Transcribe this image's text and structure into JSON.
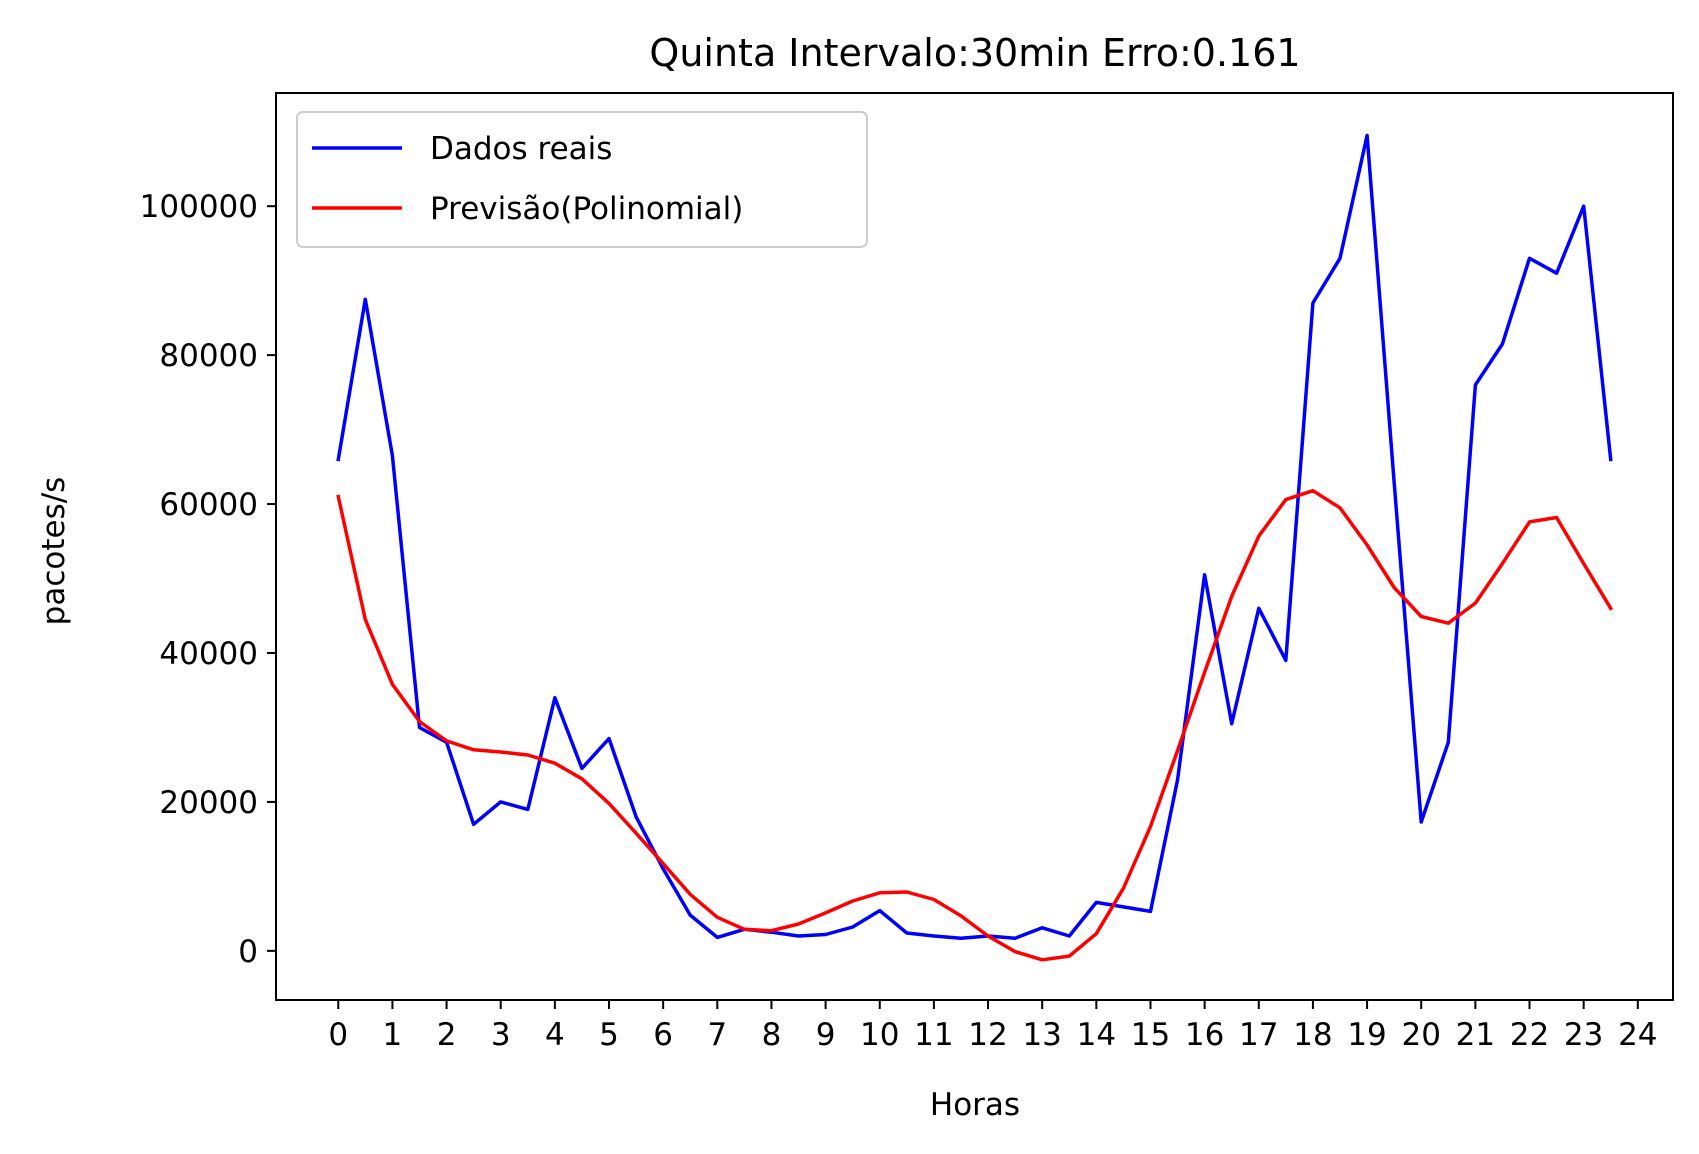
{
  "chart_data": {
    "type": "line",
    "title": "Quinta Intervalo:30min Erro:0.161",
    "xlabel": "Horas",
    "ylabel": "pacotes/s",
    "xlim": [
      -1.15,
      24.65
    ],
    "ylim": [
      -6600,
      115200
    ],
    "x_ticks": [
      0,
      1,
      2,
      3,
      4,
      5,
      6,
      7,
      8,
      9,
      10,
      11,
      12,
      13,
      14,
      15,
      16,
      17,
      18,
      19,
      20,
      21,
      22,
      23,
      24
    ],
    "x_tick_labels": [
      "0",
      "1",
      "2",
      "3",
      "4",
      "5",
      "6",
      "7",
      "8",
      "9",
      "10",
      "11",
      "12",
      "13",
      "14",
      "15",
      "16",
      "17",
      "18",
      "19",
      "20",
      "21",
      "22",
      "23",
      "24"
    ],
    "y_ticks": [
      0,
      20000,
      40000,
      60000,
      80000,
      100000
    ],
    "y_tick_labels": [
      "0",
      "20000",
      "40000",
      "60000",
      "80000",
      "100000"
    ],
    "grid": false,
    "legend_position": "upper-left",
    "x": [
      0,
      0.5,
      1,
      1.5,
      2,
      2.5,
      3,
      3.5,
      4,
      4.5,
      5,
      5.5,
      6,
      6.5,
      7,
      7.5,
      8,
      8.5,
      9,
      9.5,
      10,
      10.5,
      11,
      11.5,
      12,
      12.5,
      13,
      13.5,
      14,
      14.5,
      15,
      15.5,
      16,
      16.5,
      17,
      17.5,
      18,
      18.5,
      19,
      19.5,
      20,
      20.5,
      21,
      21.5,
      22,
      22.5,
      23,
      23.5
    ],
    "series": [
      {
        "name": "Dados reais",
        "color": "#0000ff",
        "values": [
          66000,
          87500,
          66500,
          30000,
          28000,
          17000,
          20000,
          19000,
          34000,
          24500,
          28500,
          18000,
          11000,
          4800,
          1800,
          2900,
          2500,
          2000,
          2200,
          3200,
          5400,
          2400,
          2000,
          1700,
          2000,
          1700,
          3100,
          2000,
          6500,
          5900,
          5300,
          23000,
          50500,
          30500,
          46000,
          39000,
          87000,
          93000,
          109500,
          63000,
          17300,
          28000,
          76000,
          81500,
          93000,
          91000,
          100000,
          66000
        ]
      },
      {
        "name": "Previsão(Polinomial)",
        "color": "#ff0000",
        "values": [
          61000,
          44500,
          35800,
          30800,
          28200,
          27000,
          26700,
          26300,
          25200,
          23100,
          19800,
          15800,
          11700,
          7600,
          4500,
          2900,
          2700,
          3600,
          5100,
          6700,
          7800,
          7900,
          6900,
          4700,
          2000,
          -100,
          -1200,
          -700,
          2300,
          8400,
          16700,
          26900,
          37400,
          47600,
          55700,
          60600,
          61800,
          59500,
          54500,
          48800,
          44900,
          44000,
          46700,
          52000,
          57600,
          58200,
          52000,
          46000
        ]
      }
    ]
  }
}
